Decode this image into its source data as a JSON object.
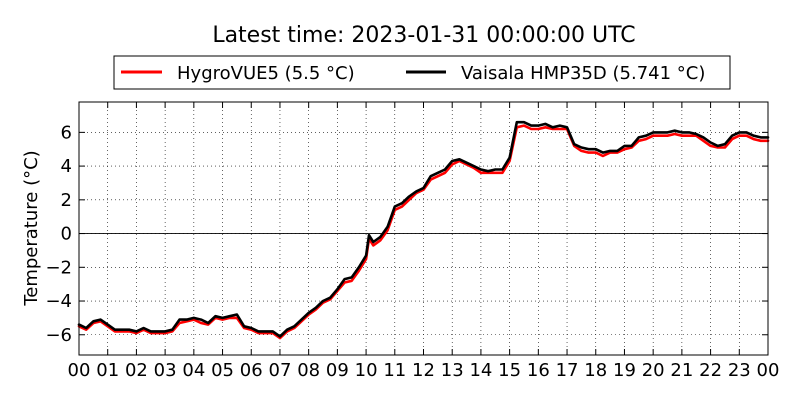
{
  "chart_data": {
    "type": "line",
    "title": "Latest time: 2023-01-31 00:00:00 UTC",
    "ylabel": "Temperature (°C)",
    "xlabel": "",
    "x_tick_labels": [
      "00",
      "01",
      "02",
      "03",
      "04",
      "05",
      "06",
      "07",
      "08",
      "09",
      "10",
      "11",
      "12",
      "13",
      "14",
      "15",
      "16",
      "17",
      "18",
      "19",
      "20",
      "21",
      "22",
      "23",
      "00"
    ],
    "xlim": [
      0,
      24
    ],
    "ylim": [
      -7.2,
      7.8
    ],
    "y_ticks": [
      -6,
      -4,
      -2,
      0,
      2,
      4,
      6
    ],
    "y_tick_labels": [
      "−6",
      "−4",
      "−2",
      "0",
      "2",
      "4",
      "6"
    ],
    "grid": true,
    "zero_line": true,
    "legend_position": "top-center",
    "series": [
      {
        "name": "HygroVUE5 (5.5 °C)",
        "color": "#ff0000",
        "x": [
          0,
          0.25,
          0.5,
          0.75,
          1,
          1.25,
          1.5,
          1.75,
          2,
          2.25,
          2.5,
          2.75,
          3,
          3.25,
          3.5,
          3.75,
          4,
          4.25,
          4.5,
          4.75,
          5,
          5.25,
          5.5,
          5.75,
          6,
          6.25,
          6.5,
          6.75,
          7,
          7.25,
          7.5,
          7.75,
          8,
          8.25,
          8.5,
          8.75,
          9,
          9.25,
          9.5,
          9.75,
          10,
          10.1,
          10.25,
          10.5,
          10.75,
          11,
          11.25,
          11.5,
          11.75,
          12,
          12.25,
          12.5,
          12.75,
          13,
          13.25,
          13.5,
          13.75,
          14,
          14.25,
          14.5,
          14.75,
          15,
          15.25,
          15.5,
          15.75,
          16,
          16.25,
          16.5,
          16.75,
          17,
          17.25,
          17.5,
          17.75,
          18,
          18.25,
          18.5,
          18.75,
          19,
          19.25,
          19.5,
          19.75,
          20,
          20.25,
          20.5,
          20.75,
          21,
          21.25,
          21.5,
          21.75,
          22,
          22.25,
          22.5,
          22.75,
          23,
          23.25,
          23.5,
          23.75,
          24
        ],
        "values": [
          -5.5,
          -5.7,
          -5.3,
          -5.2,
          -5.5,
          -5.8,
          -5.8,
          -5.8,
          -5.9,
          -5.7,
          -5.9,
          -5.9,
          -5.9,
          -5.8,
          -5.3,
          -5.2,
          -5.1,
          -5.3,
          -5.4,
          -5,
          -5.1,
          -5,
          -5,
          -5.6,
          -5.7,
          -5.9,
          -5.9,
          -5.9,
          -6.2,
          -5.8,
          -5.6,
          -5.2,
          -4.8,
          -4.5,
          -4.1,
          -3.9,
          -3.4,
          -2.9,
          -2.8,
          -2.2,
          -1.5,
          -0.3,
          -0.7,
          -0.4,
          0.2,
          1.4,
          1.6,
          2,
          2.4,
          2.6,
          3.2,
          3.4,
          3.6,
          4.1,
          4.3,
          4.1,
          3.9,
          3.6,
          3.6,
          3.6,
          3.6,
          4.3,
          6.3,
          6.4,
          6.2,
          6.2,
          6.3,
          6.2,
          6.2,
          6.2,
          5.2,
          4.9,
          4.8,
          4.8,
          4.6,
          4.8,
          4.8,
          5,
          5.1,
          5.5,
          5.6,
          5.8,
          5.8,
          5.8,
          5.9,
          5.8,
          5.8,
          5.8,
          5.5,
          5.2,
          5.1,
          5.1,
          5.6,
          5.8,
          5.8,
          5.6,
          5.5,
          5.5
        ]
      },
      {
        "name": "Vaisala HMP35D (5.741 °C)",
        "color": "#000000",
        "x": [
          0,
          0.25,
          0.5,
          0.75,
          1,
          1.25,
          1.5,
          1.75,
          2,
          2.25,
          2.5,
          2.75,
          3,
          3.25,
          3.5,
          3.75,
          4,
          4.25,
          4.5,
          4.75,
          5,
          5.25,
          5.5,
          5.75,
          6,
          6.25,
          6.5,
          6.75,
          7,
          7.25,
          7.5,
          7.75,
          8,
          8.25,
          8.5,
          8.75,
          9,
          9.25,
          9.5,
          9.75,
          10,
          10.1,
          10.25,
          10.5,
          10.75,
          11,
          11.25,
          11.5,
          11.75,
          12,
          12.25,
          12.5,
          12.75,
          13,
          13.25,
          13.5,
          13.75,
          14,
          14.25,
          14.5,
          14.75,
          15,
          15.25,
          15.5,
          15.75,
          16,
          16.25,
          16.5,
          16.75,
          17,
          17.25,
          17.5,
          17.75,
          18,
          18.25,
          18.5,
          18.75,
          19,
          19.25,
          19.5,
          19.75,
          20,
          20.25,
          20.5,
          20.75,
          21,
          21.25,
          21.5,
          21.75,
          22,
          22.25,
          22.5,
          22.75,
          23,
          23.25,
          23.5,
          23.75,
          24
        ],
        "values": [
          -5.4,
          -5.6,
          -5.2,
          -5.1,
          -5.4,
          -5.7,
          -5.7,
          -5.7,
          -5.8,
          -5.6,
          -5.8,
          -5.8,
          -5.8,
          -5.7,
          -5.1,
          -5.1,
          -5,
          -5.1,
          -5.3,
          -4.9,
          -5,
          -4.9,
          -4.8,
          -5.5,
          -5.6,
          -5.8,
          -5.8,
          -5.8,
          -6.1,
          -5.7,
          -5.5,
          -5.1,
          -4.7,
          -4.4,
          -4,
          -3.8,
          -3.3,
          -2.7,
          -2.6,
          -2,
          -1.3,
          -0.1,
          -0.5,
          -0.2,
          0.4,
          1.6,
          1.8,
          2.2,
          2.5,
          2.7,
          3.4,
          3.6,
          3.8,
          4.3,
          4.4,
          4.2,
          4,
          3.8,
          3.7,
          3.8,
          3.8,
          4.5,
          6.6,
          6.6,
          6.4,
          6.4,
          6.5,
          6.3,
          6.4,
          6.3,
          5.3,
          5.1,
          5,
          5,
          4.8,
          4.9,
          4.9,
          5.2,
          5.2,
          5.7,
          5.8,
          6,
          6,
          6,
          6.1,
          6,
          6,
          5.9,
          5.7,
          5.4,
          5.2,
          5.3,
          5.8,
          6,
          6,
          5.8,
          5.7,
          5.7
        ]
      }
    ]
  }
}
